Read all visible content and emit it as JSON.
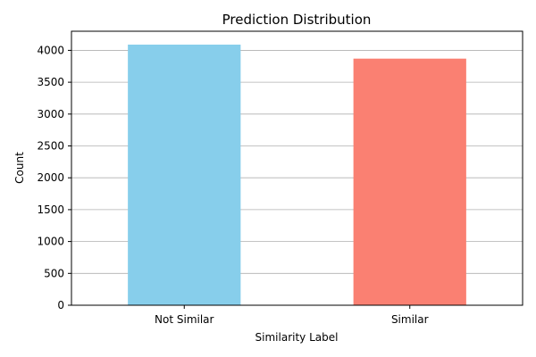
{
  "chart_data": {
    "type": "bar",
    "title": "Prediction Distribution",
    "xlabel": "Similarity Label",
    "ylabel": "Count",
    "categories": [
      "Not Similar",
      "Similar"
    ],
    "values": [
      4090,
      3870
    ],
    "colors": [
      "#87ceeb",
      "#fa8072"
    ],
    "ylim": [
      0,
      4300
    ],
    "yticks": [
      0,
      500,
      1000,
      1500,
      2000,
      2500,
      3000,
      3500,
      4000
    ],
    "grid": "y"
  }
}
